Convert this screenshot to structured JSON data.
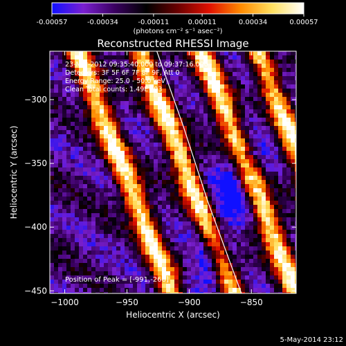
{
  "colorbar": {
    "tick_labels": [
      "-0.00057",
      "-0.00034",
      "-0.00011",
      "0.00011",
      "0.00034",
      "0.00057"
    ],
    "tick_values": [
      -0.00057,
      -0.00034,
      -0.00011,
      0.00011,
      0.00034,
      0.00057
    ],
    "range": [
      -0.00057,
      0.00057
    ],
    "units_label": "(photons cm⁻² s⁻¹ asec⁻²)",
    "colors": [
      "#1010ff",
      "#7a1fd0",
      "#3a0060",
      "#000000",
      "#6a0000",
      "#e01000",
      "#ff8a00",
      "#ffe060",
      "#ffffff"
    ]
  },
  "chart_data": {
    "type": "heatmap",
    "title": "Reconstructed RHESSI Image",
    "xlabel": "Heliocentric X (arcsec)",
    "ylabel": "Heliocentric Y (arcsec)",
    "xlim": [
      -1012,
      -814
    ],
    "ylim": [
      -452,
      -262
    ],
    "x_ticks": [
      -1000,
      -950,
      -900,
      -850
    ],
    "x_tick_labels": [
      "−1000",
      "−950",
      "−900",
      "−850"
    ],
    "y_ticks": [
      -300,
      -350,
      -400,
      -450
    ],
    "y_tick_labels": [
      "−300",
      "−350",
      "−400",
      "−450"
    ],
    "info_lines": [
      "23-Mar-2012 09:35:40.000 to 09:37:16.000",
      "Detectors: 3F 5F 6F 7F 8F 9F, Att 0",
      "Energy Range: 25.0 - 50.0 keV",
      "Clean     Total counts: 1.49E+03"
    ],
    "peak_label": "Position of Peak = [-991,-266]",
    "peak_position": [
      -991,
      -266
    ],
    "limb_curve": [
      [
        -926,
        -262
      ],
      [
        -905,
        -320
      ],
      [
        -885,
        -380
      ],
      [
        -858,
        -452
      ]
    ],
    "bright_stripes": [
      {
        "x_top": -990,
        "slope": -0.4
      },
      {
        "x_top": -940,
        "slope": -0.4
      },
      {
        "x_top": -890,
        "slope": -0.4
      },
      {
        "x_top": -845,
        "slope": -0.4
      }
    ],
    "grid": false
  },
  "footer": {
    "date_stamp": "5-May-2014 23:12"
  }
}
